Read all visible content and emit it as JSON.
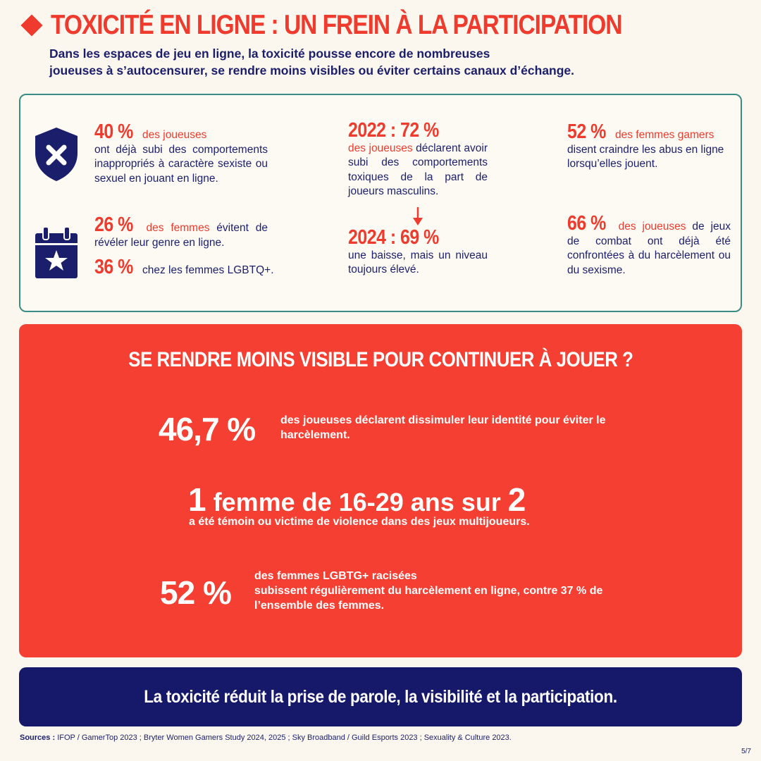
{
  "header": {
    "title": "TOXICITÉ EN LIGNE : UN FREIN À LA PARTICIPATION",
    "subtitle_line1": "Dans les espaces de jeu en ligne, la toxicité pousse encore de nombreuses",
    "subtitle_line2": "joueuses à s’autocensurer, se rendre moins visibles ou éviter certains canaux d’échange."
  },
  "stats": {
    "s40": {
      "value": "40 %",
      "lead": " des joueuses",
      "text": "ont déjà subi des comportements inappropriés à caractère sexiste ou sexuel en jouant en ligne."
    },
    "s26": {
      "value": "26 %",
      "lead": " des femmes",
      "text": " évitent de révéler leur genre en ligne."
    },
    "s36": {
      "value": "36 %",
      "text": " chez les femmes LGBTQ+."
    },
    "s2022": {
      "value": "2022 : 72 %",
      "lead": "des joueuses",
      "text": " déclarent avoir subi des comportements toxiques de la part de joueurs masculins."
    },
    "s2024": {
      "value": "2024 : 69 %",
      "text": "une baisse, mais un niveau toujours élevé."
    },
    "s52": {
      "value": "52 %",
      "lead": " des femmes gamers",
      "text": "disent craindre les abus en ligne lorsqu’elles jouent."
    },
    "s66": {
      "value": "66 %",
      "lead": " des joueuses",
      "text": " de jeux de combat ont déjà été confrontées à du harcèlement ou du sexisme."
    }
  },
  "icons": [
    "shield-x-icon",
    "calendar-star-icon",
    "arrow-down-icon"
  ],
  "panel": {
    "title": "SE RENDRE MOINS VISIBLE POUR CONTINUER À JOUER ?",
    "p1": {
      "value": "46,7 %",
      "text": "des joueuses déclarent dissimuler leur identité pour éviter le harcèlement."
    },
    "p2": {
      "n1": "1",
      "mid": " femme de 16-29 ans sur ",
      "n2": "2",
      "text": "a été témoin ou victime de violence dans des jeux multijoueurs."
    },
    "p3": {
      "value": "52 %",
      "line1": "des femmes LGBTG+ racisées",
      "line2": "subissent régulièrement du harcèlement en ligne, contre 37 % de l’ensemble des femmes."
    }
  },
  "band": {
    "text": "La toxicité réduit la prise de parole, la visibilité et la participation."
  },
  "footer": {
    "sources_label": "Sources :",
    "sources_text": " IFOP / GamerTop 2023 ; Bryter Women Gamers Study 2024, 2025 ; Sky Broadband / Guild Esports 2023 ; Sexuality & Culture 2023.",
    "page": "5/7"
  },
  "colors": {
    "red": "#ef3b2d",
    "navy": "#1b1f6b",
    "teal_border": "#3a8c86",
    "background": "#fbf6ee"
  }
}
